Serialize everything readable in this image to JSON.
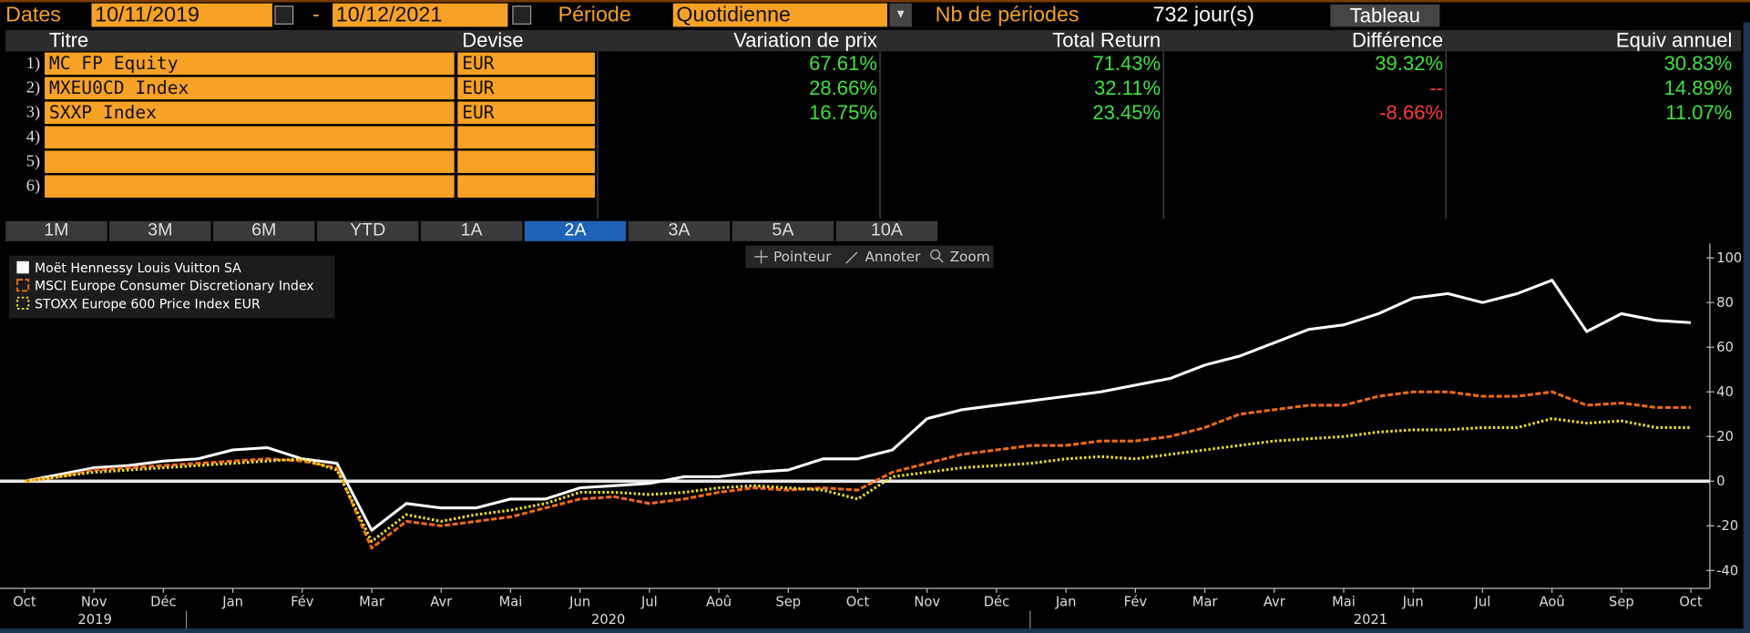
{
  "toolbar": {
    "dates_label": "Dates",
    "start_date": "10/11/2019",
    "dash": "-",
    "end_date": "10/12/2021",
    "period_label": "Période",
    "period": "Quotidienne",
    "count_label": "Nb de périodes",
    "count": "732 jour(s)",
    "view_button": "Tableau"
  },
  "table": {
    "columns": [
      "Titre",
      "Devise",
      "Variation de prix",
      "Total Return",
      "Différence",
      "Equiv annuel"
    ],
    "row_numbers": [
      "1)",
      "2)",
      "3)",
      "4)",
      "5)",
      "6)"
    ],
    "rows": [
      [
        "MC FP Equity",
        "EUR",
        "67.61%",
        "71.43%",
        "39.32%",
        "30.83%"
      ],
      [
        "MXEU0CD Index",
        "EUR",
        "28.66%",
        "32.11%",
        "--",
        "14.89%"
      ],
      [
        "SXXP Index",
        "EUR",
        "16.75%",
        "23.45%",
        "-8.66%",
        "11.07%"
      ]
    ],
    "positive_color": "#3fe23f",
    "negative_color": "#ff3b3b"
  },
  "period_buttons": [
    "1M",
    "3M",
    "6M",
    "YTD",
    "1A",
    "2A",
    "3A",
    "5A",
    "10A"
  ],
  "active_button": 5,
  "chart_tools": [
    "Pointeur",
    "Annoter",
    "Zoom"
  ],
  "chart_data": {
    "type": "line",
    "categories": [
      "Oct",
      null,
      "Nov",
      null,
      "Déc",
      null,
      "Jan",
      null,
      "Fév",
      null,
      "Mar",
      null,
      "Avr",
      null,
      "Mai",
      null,
      "Jun",
      null,
      "Jul",
      null,
      "Aoû",
      null,
      "Sep",
      null,
      "Oct",
      null,
      "Nov",
      null,
      "Déc",
      null,
      "Jan",
      null,
      "Fév",
      null,
      "Mar",
      null,
      "Avr",
      null,
      "Mai",
      null,
      "Jun",
      null,
      "Jul",
      null,
      "Aoû",
      null,
      "Sep",
      null,
      "Oct"
    ],
    "year_labels": [
      "2019",
      "2020",
      "2021"
    ],
    "series": [
      {
        "name": "Moët Hennessy Louis Vuitton SA",
        "color": "#ffffff",
        "style": "solid",
        "values": [
          0,
          3,
          6,
          7,
          9,
          10,
          14,
          15,
          10,
          8,
          -22,
          -10,
          -12,
          -12,
          -8,
          -8,
          -3,
          -2,
          -1,
          2,
          2,
          4,
          5,
          10,
          10,
          14,
          28,
          32,
          34,
          36,
          38,
          40,
          43,
          46,
          52,
          56,
          62,
          68,
          70,
          75,
          82,
          84,
          80,
          84,
          90,
          67,
          75,
          72,
          71
        ]
      },
      {
        "name": "MSCI Europe Consumer Discretionary Index",
        "color": "#f06a10",
        "style": "dashed",
        "values": [
          0,
          2,
          5,
          6,
          7,
          8,
          9,
          10,
          9,
          6,
          -30,
          -18,
          -20,
          -18,
          -16,
          -12,
          -8,
          -7,
          -10,
          -8,
          -5,
          -3,
          -4,
          -3,
          -4,
          4,
          8,
          12,
          14,
          16,
          16,
          18,
          18,
          20,
          24,
          30,
          32,
          34,
          34,
          38,
          40,
          40,
          38,
          38,
          40,
          34,
          35,
          33,
          33
        ]
      },
      {
        "name": "STOXX Europe 600 Price Index EUR",
        "color": "#f0e020",
        "style": "dotted",
        "values": [
          0,
          2,
          4,
          5,
          6,
          7,
          8,
          9,
          10,
          5,
          -27,
          -15,
          -18,
          -15,
          -13,
          -10,
          -5,
          -5,
          -6,
          -5,
          -3,
          -2,
          -3,
          -4,
          -8,
          2,
          4,
          6,
          7,
          8,
          10,
          11,
          10,
          12,
          14,
          16,
          18,
          19,
          20,
          22,
          23,
          23,
          24,
          24,
          28,
          26,
          27,
          24,
          24
        ]
      }
    ],
    "ylim": [
      -48,
      106
    ],
    "yticks": [
      -40,
      -20,
      0,
      20,
      40,
      60,
      80,
      100
    ],
    "baseline": 0,
    "grid": false
  }
}
